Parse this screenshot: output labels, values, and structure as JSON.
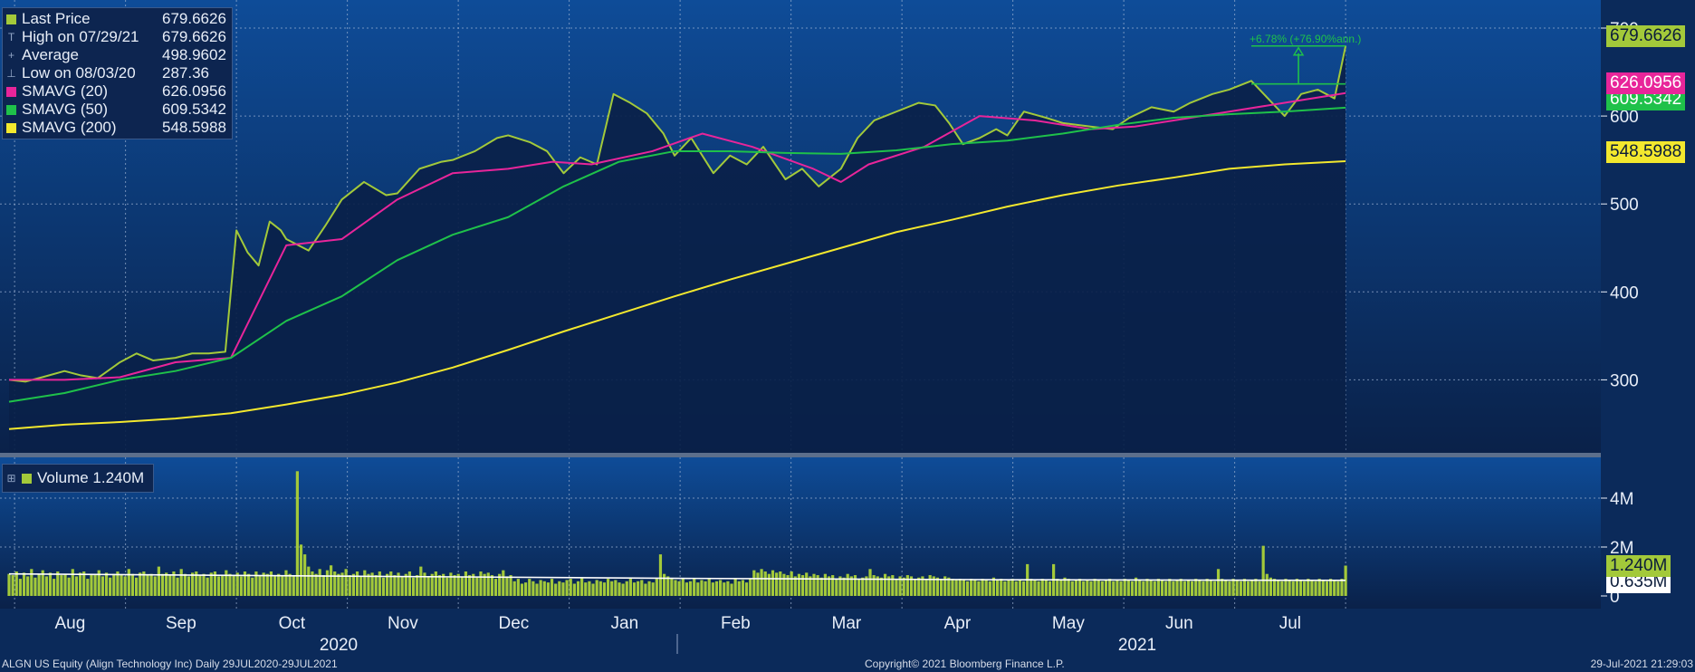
{
  "legend_price": [
    {
      "label": "Last Price",
      "value": "679.6626",
      "marker": "swatch",
      "color": "#a3c93a"
    },
    {
      "label": "High on 07/29/21",
      "value": "679.6626",
      "marker": "T",
      "color": ""
    },
    {
      "label": "Average",
      "value": "498.9602",
      "marker": "+",
      "color": ""
    },
    {
      "label": "Low on 08/03/20",
      "value": "287.36",
      "marker": "⊥",
      "color": ""
    },
    {
      "label": "SMAVG (20)",
      "value": "626.0956",
      "marker": "swatch",
      "color": "#e8259a"
    },
    {
      "label": "SMAVG (50)",
      "value": "609.5342",
      "marker": "swatch",
      "color": "#1fc14a"
    },
    {
      "label": "SMAVG (200)",
      "value": "548.5988",
      "marker": "swatch",
      "color": "#f3e82e"
    }
  ],
  "legend_volume": {
    "label": "Volume 1.240M",
    "color": "#a3c93a"
  },
  "annotation": "+6.78% (+76.90%ann.)",
  "tags": {
    "last": {
      "text": "679.6626",
      "bg": "#a3c93a",
      "fg": "#0b1c3a"
    },
    "sma20": {
      "text": "626.0956",
      "bg": "#e8259a",
      "fg": "#ffffff"
    },
    "sma50": {
      "text": "609.5342",
      "bg": "#1fc14a",
      "fg": "#ffffff"
    },
    "sma200": {
      "text": "548.5988",
      "bg": "#f3e82e",
      "fg": "#0b1c3a"
    },
    "volume": {
      "text": "1.240M",
      "bg": "#a3c93a",
      "fg": "#0b1c3a"
    },
    "volume_avg": {
      "text": "0.635M",
      "bg": "#ffffff",
      "fg": "#0b1c3a"
    }
  },
  "footer": {
    "left": "ALGN US Equity (Align Technology Inc)  Daily 29JUL2020-29JUL2021",
    "center": "Copyright© 2021 Bloomberg Finance L.P.",
    "right": "29-Jul-2021 21:29:03"
  },
  "chart_data": {
    "type": "line",
    "months": [
      "Aug",
      "Sep",
      "Oct",
      "Nov",
      "Dec",
      "Jan",
      "Feb",
      "Mar",
      "Apr",
      "May",
      "Jun",
      "Jul"
    ],
    "years": [
      "2020",
      "2021"
    ],
    "price_axis": {
      "ticks": [
        300,
        400,
        500,
        600,
        700
      ],
      "ylim": [
        200,
        710
      ]
    },
    "volume_axis": {
      "ticks": [
        "0",
        "2M",
        "4M"
      ],
      "tick_values": [
        0,
        2,
        4
      ],
      "ylim": [
        0,
        5.4
      ]
    },
    "price_colors": {
      "last": "#a3c93a",
      "sma20": "#e8259a",
      "sma50": "#1fc14a",
      "sma200": "#f3e82e"
    },
    "series": [
      {
        "name": "Last Price",
        "points": [
          [
            0,
            300
          ],
          [
            0.3,
            298
          ],
          [
            0.6,
            303
          ],
          [
            1,
            310
          ],
          [
            1.3,
            305
          ],
          [
            1.6,
            302
          ],
          [
            2,
            320
          ],
          [
            2.3,
            330
          ],
          [
            2.6,
            322
          ],
          [
            3,
            325
          ],
          [
            3.3,
            330
          ],
          [
            3.6,
            330
          ],
          [
            3.9,
            332
          ],
          [
            4.1,
            470
          ],
          [
            4.3,
            445
          ],
          [
            4.5,
            430
          ],
          [
            4.7,
            480
          ],
          [
            4.9,
            470
          ],
          [
            5,
            460
          ],
          [
            5.4,
            447
          ],
          [
            5.7,
            475
          ],
          [
            6,
            505
          ],
          [
            6.4,
            525
          ],
          [
            6.8,
            510
          ],
          [
            7,
            512
          ],
          [
            7.4,
            540
          ],
          [
            7.8,
            548
          ],
          [
            8,
            550
          ],
          [
            8.4,
            560
          ],
          [
            8.8,
            575
          ],
          [
            9,
            578
          ],
          [
            9.4,
            570
          ],
          [
            9.7,
            560
          ],
          [
            10,
            535
          ],
          [
            10.3,
            553
          ],
          [
            10.6,
            545
          ],
          [
            10.9,
            625
          ],
          [
            11.2,
            615
          ],
          [
            11.5,
            603
          ],
          [
            11.8,
            580
          ],
          [
            12,
            555
          ],
          [
            12.3,
            575
          ],
          [
            12.7,
            535
          ],
          [
            13,
            555
          ],
          [
            13.3,
            545
          ],
          [
            13.6,
            565
          ],
          [
            14,
            528
          ],
          [
            14.3,
            540
          ],
          [
            14.6,
            520
          ],
          [
            15,
            540
          ],
          [
            15.3,
            575
          ],
          [
            15.6,
            595
          ],
          [
            16,
            605
          ],
          [
            16.4,
            615
          ],
          [
            16.7,
            612
          ],
          [
            16.95,
            592
          ],
          [
            17.2,
            568
          ],
          [
            17.5,
            575
          ],
          [
            17.8,
            585
          ],
          [
            18,
            578
          ],
          [
            18.3,
            605
          ],
          [
            18.7,
            598
          ],
          [
            19,
            592
          ],
          [
            19.5,
            588
          ],
          [
            19.9,
            585
          ],
          [
            20.2,
            598
          ],
          [
            20.6,
            610
          ],
          [
            21,
            605
          ],
          [
            21.3,
            615
          ],
          [
            21.7,
            625
          ],
          [
            22,
            630
          ],
          [
            22.4,
            640
          ],
          [
            22.7,
            620
          ],
          [
            23,
            600
          ],
          [
            23.3,
            625
          ],
          [
            23.6,
            630
          ],
          [
            23.9,
            620
          ],
          [
            24.1,
            679.66
          ]
        ]
      },
      {
        "name": "SMAVG (20)",
        "points": [
          [
            0,
            300
          ],
          [
            1,
            300
          ],
          [
            2,
            303
          ],
          [
            3,
            320
          ],
          [
            4,
            325
          ],
          [
            5,
            453
          ],
          [
            6,
            460
          ],
          [
            7,
            505
          ],
          [
            8,
            535
          ],
          [
            9,
            540
          ],
          [
            9.8,
            548
          ],
          [
            10.5,
            545
          ],
          [
            11.6,
            560
          ],
          [
            12.5,
            580
          ],
          [
            13.4,
            565
          ],
          [
            14.5,
            540
          ],
          [
            15,
            525
          ],
          [
            15.5,
            545
          ],
          [
            16.5,
            565
          ],
          [
            17.5,
            600
          ],
          [
            18.5,
            595
          ],
          [
            19.5,
            585
          ],
          [
            20.3,
            588
          ],
          [
            21,
            595
          ],
          [
            22,
            605
          ],
          [
            23,
            615
          ],
          [
            24.1,
            626.1
          ]
        ]
      },
      {
        "name": "SMAVG (50)",
        "points": [
          [
            0,
            275
          ],
          [
            1,
            285
          ],
          [
            2,
            300
          ],
          [
            3,
            310
          ],
          [
            4,
            325
          ],
          [
            5,
            367
          ],
          [
            6,
            395
          ],
          [
            7,
            436
          ],
          [
            8,
            465
          ],
          [
            9,
            485
          ],
          [
            10,
            520
          ],
          [
            11,
            548
          ],
          [
            12,
            560
          ],
          [
            13,
            560
          ],
          [
            14,
            558
          ],
          [
            15,
            557
          ],
          [
            16,
            561
          ],
          [
            17,
            568
          ],
          [
            18,
            572
          ],
          [
            19,
            580
          ],
          [
            20,
            590
          ],
          [
            21,
            598
          ],
          [
            22,
            602
          ],
          [
            23,
            605
          ],
          [
            24.1,
            609.5
          ]
        ]
      },
      {
        "name": "SMAVG (200)",
        "points": [
          [
            0,
            244
          ],
          [
            1,
            249
          ],
          [
            2,
            252
          ],
          [
            3,
            256
          ],
          [
            4,
            262
          ],
          [
            5,
            272
          ],
          [
            6,
            283
          ],
          [
            7,
            297
          ],
          [
            8,
            314
          ],
          [
            9,
            334
          ],
          [
            10,
            355
          ],
          [
            11,
            375
          ],
          [
            12,
            395
          ],
          [
            13,
            414
          ],
          [
            14,
            432
          ],
          [
            15,
            450
          ],
          [
            16,
            468
          ],
          [
            17,
            482
          ],
          [
            18,
            497
          ],
          [
            19,
            510
          ],
          [
            20,
            521
          ],
          [
            21,
            530
          ],
          [
            22,
            540
          ],
          [
            23,
            545
          ],
          [
            24.1,
            548.6
          ]
        ]
      }
    ],
    "volume": {
      "name": "Volume",
      "values_m": [
        0.9,
        0.85,
        1.0,
        0.7,
        0.95,
        0.8,
        1.1,
        0.75,
        0.9,
        1.05,
        0.8,
        0.95,
        0.7,
        1.0,
        0.85,
        0.9,
        0.75,
        1.1,
        0.8,
        0.95,
        1.0,
        0.7,
        0.9,
        0.85,
        1.05,
        0.8,
        0.95,
        0.75,
        0.9,
        1.0,
        0.85,
        0.8,
        1.1,
        0.9,
        0.75,
        0.95,
        1.0,
        0.85,
        0.9,
        0.8,
        1.2,
        0.9,
        0.95,
        0.85,
        1.0,
        0.75,
        1.1,
        0.9,
        0.8,
        0.95,
        1.0,
        0.85,
        0.9,
        0.75,
        0.95,
        1.0,
        0.8,
        0.85,
        1.05,
        0.9,
        0.85,
        0.95,
        0.8,
        1.0,
        0.9,
        0.75,
        1.0,
        0.85,
        0.95,
        0.9,
        1.0,
        0.8,
        0.9,
        0.85,
        1.05,
        0.9,
        0.8,
        5.1,
        2.1,
        1.7,
        1.2,
        1.0,
        0.9,
        1.1,
        0.85,
        1.05,
        1.25,
        1.0,
        0.9,
        0.95,
        1.1,
        0.85,
        0.9,
        1.0,
        0.8,
        1.05,
        0.9,
        0.95,
        0.85,
        1.0,
        0.75,
        0.9,
        1.0,
        0.85,
        0.95,
        0.8,
        0.9,
        1.0,
        0.75,
        0.85,
        1.2,
        0.95,
        0.8,
        0.9,
        1.0,
        0.85,
        0.9,
        0.75,
        0.95,
        0.85,
        0.9,
        0.8,
        1.0,
        0.85,
        0.9,
        0.75,
        1.0,
        0.9,
        0.95,
        0.85,
        0.7,
        0.9,
        1.05,
        0.8,
        0.85,
        0.6,
        0.7,
        0.5,
        0.55,
        0.7,
        0.6,
        0.5,
        0.65,
        0.6,
        0.55,
        0.7,
        0.5,
        0.6,
        0.55,
        0.65,
        0.7,
        0.5,
        0.6,
        0.75,
        0.55,
        0.6,
        0.5,
        0.65,
        0.6,
        0.55,
        0.7,
        0.6,
        0.65,
        0.55,
        0.5,
        0.6,
        0.7,
        0.55,
        0.6,
        0.65,
        0.5,
        0.6,
        0.55,
        0.7,
        1.7,
        0.9,
        0.8,
        0.7,
        0.65,
        0.6,
        0.7,
        0.55,
        0.6,
        0.7,
        0.55,
        0.65,
        0.6,
        0.7,
        0.55,
        0.6,
        0.65,
        0.55,
        0.6,
        0.5,
        0.7,
        0.6,
        0.65,
        0.55,
        0.7,
        1.05,
        0.95,
        1.1,
        1.0,
        0.9,
        1.05,
        0.95,
        1.0,
        0.9,
        0.85,
        1.0,
        0.8,
        0.9,
        0.85,
        0.95,
        0.8,
        0.9,
        0.85,
        0.75,
        0.9,
        0.8,
        0.85,
        0.7,
        0.8,
        0.75,
        0.9,
        0.8,
        0.85,
        0.7,
        0.75,
        0.8,
        1.1,
        0.85,
        0.8,
        0.75,
        0.9,
        0.8,
        0.85,
        0.7,
        0.8,
        0.75,
        0.85,
        0.8,
        0.7,
        0.75,
        0.8,
        0.7,
        0.85,
        0.8,
        0.75,
        0.7,
        0.8,
        0.75,
        0.7,
        0.65,
        0.7,
        0.65,
        0.6,
        0.7,
        0.65,
        0.6,
        0.7,
        0.65,
        0.6,
        0.75,
        0.65,
        0.7,
        0.6,
        0.65,
        0.7,
        0.6,
        0.65,
        0.6,
        1.3,
        0.7,
        0.65,
        0.6,
        0.7,
        0.65,
        0.6,
        1.3,
        0.7,
        0.65,
        0.75,
        0.7,
        0.6,
        0.65,
        0.7,
        0.6,
        0.65,
        0.6,
        0.7,
        0.65,
        0.6,
        0.65,
        0.7,
        0.6,
        0.65,
        0.6,
        0.7,
        0.65,
        0.6,
        0.75,
        0.65,
        0.6,
        0.7,
        0.65,
        0.6,
        0.7,
        0.65,
        0.6,
        0.7,
        0.6,
        0.65,
        0.7,
        0.6,
        0.65,
        0.6,
        0.7,
        0.65,
        0.6,
        0.7,
        0.65,
        0.6,
        1.1,
        0.7,
        0.65,
        0.6,
        0.7,
        0.65,
        0.6,
        0.7,
        0.6,
        0.65,
        0.7,
        0.6,
        2.05,
        0.9,
        0.75,
        0.7,
        0.65,
        0.6,
        0.7,
        0.65,
        0.6,
        0.7,
        0.65,
        0.6,
        0.7,
        0.65,
        0.6,
        0.7,
        0.65,
        0.6,
        0.7,
        0.65,
        0.6,
        0.7,
        1.24
      ],
      "average_m": 0.635
    },
    "annotation_range": {
      "start": 22.4,
      "end": 24.1,
      "from_price": 636.5,
      "to_price": 679.66
    }
  }
}
